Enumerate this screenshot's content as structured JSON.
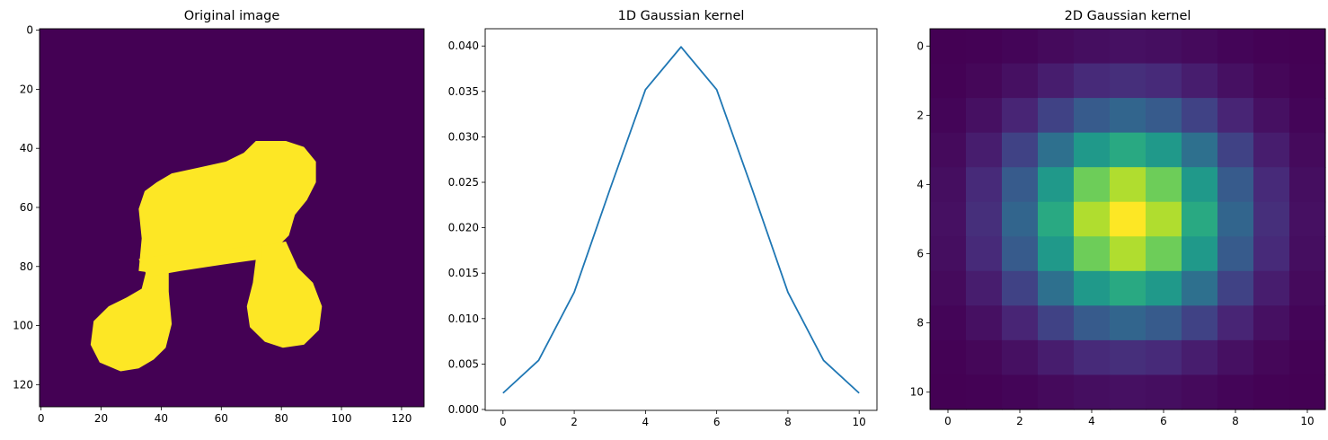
{
  "chart_data": [
    {
      "type": "image",
      "title": "Original image",
      "xlim": [
        0,
        128
      ],
      "ylim": [
        128,
        0
      ],
      "xticks": [
        "0",
        "20",
        "40",
        "60",
        "80",
        "100",
        "120"
      ],
      "yticks": [
        "0",
        "20",
        "40",
        "60",
        "80",
        "100",
        "120"
      ],
      "colormap": "viridis",
      "background_color": "#440154",
      "foreground_color": "#fde725"
    },
    {
      "type": "line",
      "title": "1D Gaussian kernel",
      "x": [
        0,
        1,
        2,
        3,
        4,
        5,
        6,
        7,
        8,
        9,
        10
      ],
      "values": [
        0.0018,
        0.0054,
        0.0129,
        0.0242,
        0.0352,
        0.0399,
        0.0352,
        0.0242,
        0.0129,
        0.0054,
        0.0018
      ],
      "xticks": [
        "0",
        "2",
        "4",
        "6",
        "8",
        "10"
      ],
      "yticks": [
        "0.000",
        "0.005",
        "0.010",
        "0.015",
        "0.020",
        "0.025",
        "0.030",
        "0.035",
        "0.040"
      ],
      "xlim": [
        -0.5,
        10.5
      ],
      "ylim": [
        -0.0001,
        0.0419
      ],
      "line_color": "#1f77b4"
    },
    {
      "type": "heatmap",
      "title": "2D Gaussian kernel",
      "xticks": [
        "0",
        "2",
        "4",
        "6",
        "8",
        "10"
      ],
      "yticks": [
        "0",
        "2",
        "4",
        "6",
        "8",
        "10"
      ],
      "xlim": [
        -0.5,
        10.5
      ],
      "ylim": [
        10.5,
        -0.5
      ],
      "colormap": "viridis",
      "weights_1d": [
        0.0018,
        0.0054,
        0.0129,
        0.0242,
        0.0352,
        0.0399,
        0.0352,
        0.0242,
        0.0129,
        0.0054,
        0.0018
      ]
    }
  ]
}
